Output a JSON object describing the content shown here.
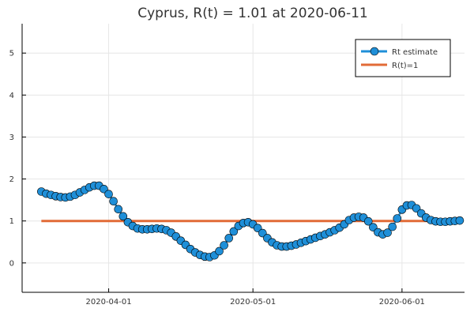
{
  "chart_data": {
    "type": "line",
    "title": "Cyprus, R(t) = 1.01 at 2020-06-11",
    "xlabel": "",
    "ylabel": "",
    "x_start": "2020-03-18",
    "x_end": "2020-06-11",
    "xlim": [
      "2020-03-14",
      "2020-06-14"
    ],
    "ylim": [
      -0.7,
      5.7
    ],
    "x_ticks": [
      {
        "date": "2020-04-01",
        "label": "2020-04-01"
      },
      {
        "date": "2020-05-01",
        "label": "2020-05-01"
      },
      {
        "date": "2020-06-01",
        "label": "2020-06-01"
      }
    ],
    "y_ticks": [
      0,
      1,
      2,
      3,
      4,
      5
    ],
    "grid": true,
    "legend_position": "top-right",
    "series": [
      {
        "name": "Rt estimate",
        "color": "#1f8fd8",
        "marker": "circle",
        "values": [
          1.7,
          1.65,
          1.62,
          1.59,
          1.57,
          1.56,
          1.58,
          1.62,
          1.68,
          1.74,
          1.8,
          1.84,
          1.84,
          1.76,
          1.64,
          1.47,
          1.28,
          1.11,
          0.97,
          0.88,
          0.82,
          0.8,
          0.8,
          0.81,
          0.82,
          0.81,
          0.78,
          0.72,
          0.63,
          0.53,
          0.43,
          0.33,
          0.25,
          0.19,
          0.15,
          0.14,
          0.18,
          0.28,
          0.42,
          0.59,
          0.75,
          0.88,
          0.95,
          0.97,
          0.92,
          0.83,
          0.71,
          0.59,
          0.49,
          0.42,
          0.39,
          0.39,
          0.41,
          0.44,
          0.48,
          0.52,
          0.56,
          0.6,
          0.64,
          0.68,
          0.73,
          0.78,
          0.84,
          0.92,
          1.02,
          1.08,
          1.1,
          1.08,
          0.99,
          0.85,
          0.73,
          0.68,
          0.72,
          0.86,
          1.06,
          1.27,
          1.37,
          1.38,
          1.3,
          1.18,
          1.08,
          1.02,
          0.99,
          0.98,
          0.98,
          0.99,
          1.0,
          1.01
        ]
      },
      {
        "name": "R(t)=1",
        "color": "#e26b37",
        "marker": "none",
        "values": [
          1,
          1
        ]
      }
    ]
  }
}
